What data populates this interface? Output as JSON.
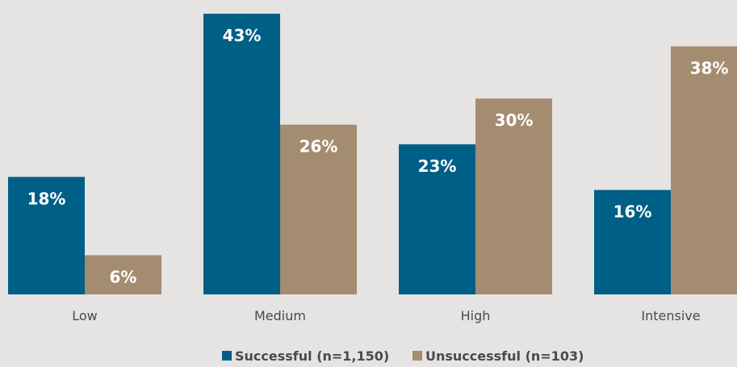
{
  "chart_data": {
    "type": "bar",
    "categories": [
      "Low",
      "Medium",
      "High",
      "Intensive"
    ],
    "series": [
      {
        "name": "Successful (n=1,150)",
        "values": [
          18,
          43,
          23,
          16
        ],
        "labels": [
          "18%",
          "43%",
          "23%",
          "16%"
        ],
        "color": "#005f87"
      },
      {
        "name": "Unsuccessful (n=103)",
        "values": [
          6,
          26,
          30,
          38
        ],
        "labels": [
          "6%",
          "26%",
          "30%",
          "38%"
        ],
        "color": "#a48c71"
      }
    ],
    "ylim": [
      0,
      45
    ],
    "grid": false,
    "legend": "bottom-center"
  }
}
